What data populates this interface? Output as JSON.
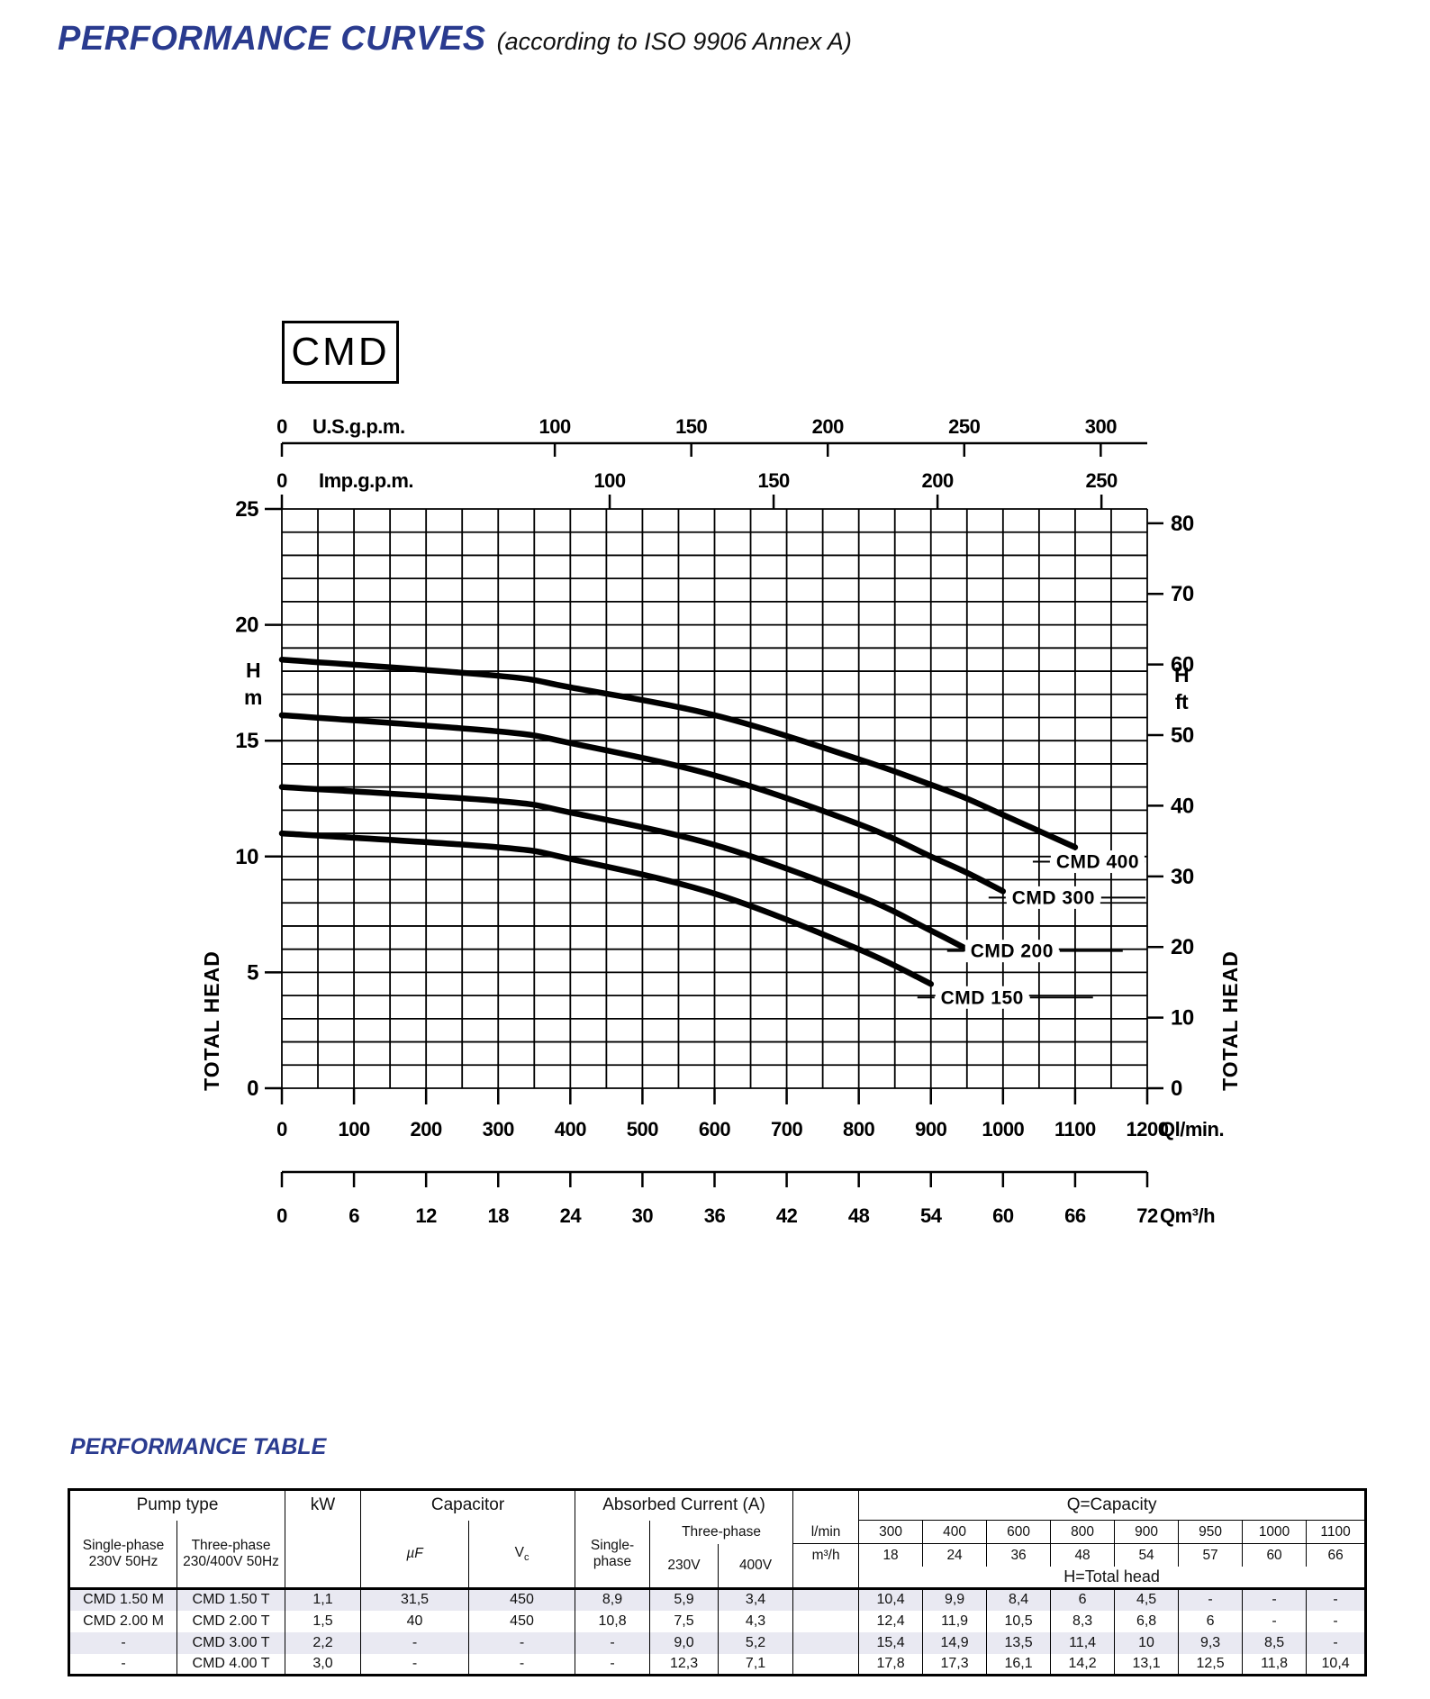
{
  "header": {
    "title": "PERFORMANCE CURVES",
    "subtitle": "(according to ISO 9906 Annex A)"
  },
  "accent_color": "#2a3b8f",
  "chart_data": {
    "type": "line",
    "model": "CMD",
    "xlim_lmin": [
      0,
      1200
    ],
    "ylim_m": [
      0,
      25
    ],
    "grid": {
      "x_step_lmin": 50,
      "y_step_m": 1,
      "on": true
    },
    "x_unit_axes": [
      {
        "id": "usgpm",
        "label": "U.S.g.p.m.",
        "ticks": [
          0,
          100,
          150,
          200,
          250,
          300
        ],
        "lmin_per_unit": 3.785,
        "position": "top-1"
      },
      {
        "id": "impgpm",
        "label": "Imp.g.p.m.",
        "ticks": [
          0,
          100,
          150,
          200,
          250
        ],
        "lmin_per_unit": 4.546,
        "position": "top-2"
      },
      {
        "id": "lmin",
        "label": "Ql/min.",
        "ticks": [
          0,
          100,
          200,
          300,
          400,
          500,
          600,
          700,
          800,
          900,
          1000,
          1100,
          1200
        ],
        "lmin_per_unit": 1,
        "position": "bottom-1"
      },
      {
        "id": "m3h",
        "label": "Qm³/h",
        "ticks": [
          0,
          6,
          12,
          18,
          24,
          30,
          36,
          42,
          48,
          54,
          60,
          66,
          72
        ],
        "lmin_per_unit": 16.6667,
        "position": "bottom-2"
      }
    ],
    "y_unit_axes": [
      {
        "id": "m",
        "label_lines": [
          "H",
          "m"
        ],
        "axis_title": "TOTAL HEAD",
        "ticks": [
          0,
          5,
          10,
          15,
          20,
          25
        ],
        "m_per_unit": 1,
        "side": "left"
      },
      {
        "id": "ft",
        "label_lines": [
          "H",
          "ft"
        ],
        "axis_title": "TOTAL HEAD",
        "ticks": [
          0,
          10,
          20,
          30,
          40,
          50,
          60,
          70,
          80
        ],
        "m_per_unit": 0.3048,
        "side": "right"
      }
    ],
    "series": [
      {
        "name": "CMD 150",
        "x_lmin": [
          0,
          300,
          400,
          600,
          800,
          900
        ],
        "h_m": [
          11.0,
          10.4,
          9.9,
          8.4,
          6.0,
          4.5
        ]
      },
      {
        "name": "CMD 200",
        "x_lmin": [
          0,
          300,
          400,
          600,
          800,
          900,
          950
        ],
        "h_m": [
          13.0,
          12.4,
          11.9,
          10.5,
          8.3,
          6.8,
          6.0
        ]
      },
      {
        "name": "CMD 300",
        "x_lmin": [
          0,
          300,
          400,
          600,
          800,
          900,
          950,
          1000
        ],
        "h_m": [
          16.1,
          15.4,
          14.9,
          13.5,
          11.4,
          10.0,
          9.3,
          8.5
        ]
      },
      {
        "name": "CMD 400",
        "x_lmin": [
          0,
          300,
          400,
          600,
          800,
          900,
          950,
          1000,
          1100
        ],
        "h_m": [
          18.5,
          17.8,
          17.3,
          16.1,
          14.2,
          13.1,
          12.5,
          11.8,
          10.4
        ]
      }
    ]
  },
  "table": {
    "title": "PERFORMANCE TABLE",
    "headers": {
      "pump_type": "Pump type",
      "single_phase_l1": "Single-phase",
      "single_phase_l2": "230V 50Hz",
      "three_phase_l1": "Three-phase",
      "three_phase_l2": "230/400V 50Hz",
      "kw": "kW",
      "capacitor": "Capacitor",
      "uf": "µF",
      "vc_v": "V",
      "vc_c": "c",
      "absorbed_current": "Absorbed Current (A)",
      "ac_single_l1": "Single-",
      "ac_single_l2": "phase",
      "ac_three": "Three-phase",
      "v230": "230V",
      "v400": "400V",
      "unit_lmin": "l/min",
      "unit_m3h": "m³/h",
      "q_capacity": "Q=Capacity",
      "h_total_head": "H=Total head",
      "q_lmin": [
        "300",
        "400",
        "600",
        "800",
        "900",
        "950",
        "1000",
        "1100"
      ],
      "q_m3h": [
        "18",
        "24",
        "36",
        "48",
        "54",
        "57",
        "60",
        "66"
      ]
    },
    "rows": [
      {
        "single": "CMD 1.50 M",
        "three": "CMD 1.50 T",
        "kw": "1,1",
        "uf": "31,5",
        "vc": "450",
        "a_single": "8,9",
        "a_230": "5,9",
        "a_400": "3,4",
        "heads": [
          "10,4",
          "9,9",
          "8,4",
          "6",
          "4,5",
          "-",
          "-",
          "-"
        ]
      },
      {
        "single": "CMD 2.00 M",
        "three": "CMD 2.00 T",
        "kw": "1,5",
        "uf": "40",
        "vc": "450",
        "a_single": "10,8",
        "a_230": "7,5",
        "a_400": "4,3",
        "heads": [
          "12,4",
          "11,9",
          "10,5",
          "8,3",
          "6,8",
          "6",
          "-",
          "-"
        ]
      },
      {
        "single": "-",
        "three": "CMD 3.00 T",
        "kw": "2,2",
        "uf": "-",
        "vc": "-",
        "a_single": "-",
        "a_230": "9,0",
        "a_400": "5,2",
        "heads": [
          "15,4",
          "14,9",
          "13,5",
          "11,4",
          "10",
          "9,3",
          "8,5",
          "-"
        ]
      },
      {
        "single": "-",
        "three": "CMD 4.00 T",
        "kw": "3,0",
        "uf": "-",
        "vc": "-",
        "a_single": "-",
        "a_230": "12,3",
        "a_400": "7,1",
        "heads": [
          "17,8",
          "17,3",
          "16,1",
          "14,2",
          "13,1",
          "12,5",
          "11,8",
          "10,4"
        ]
      }
    ]
  }
}
